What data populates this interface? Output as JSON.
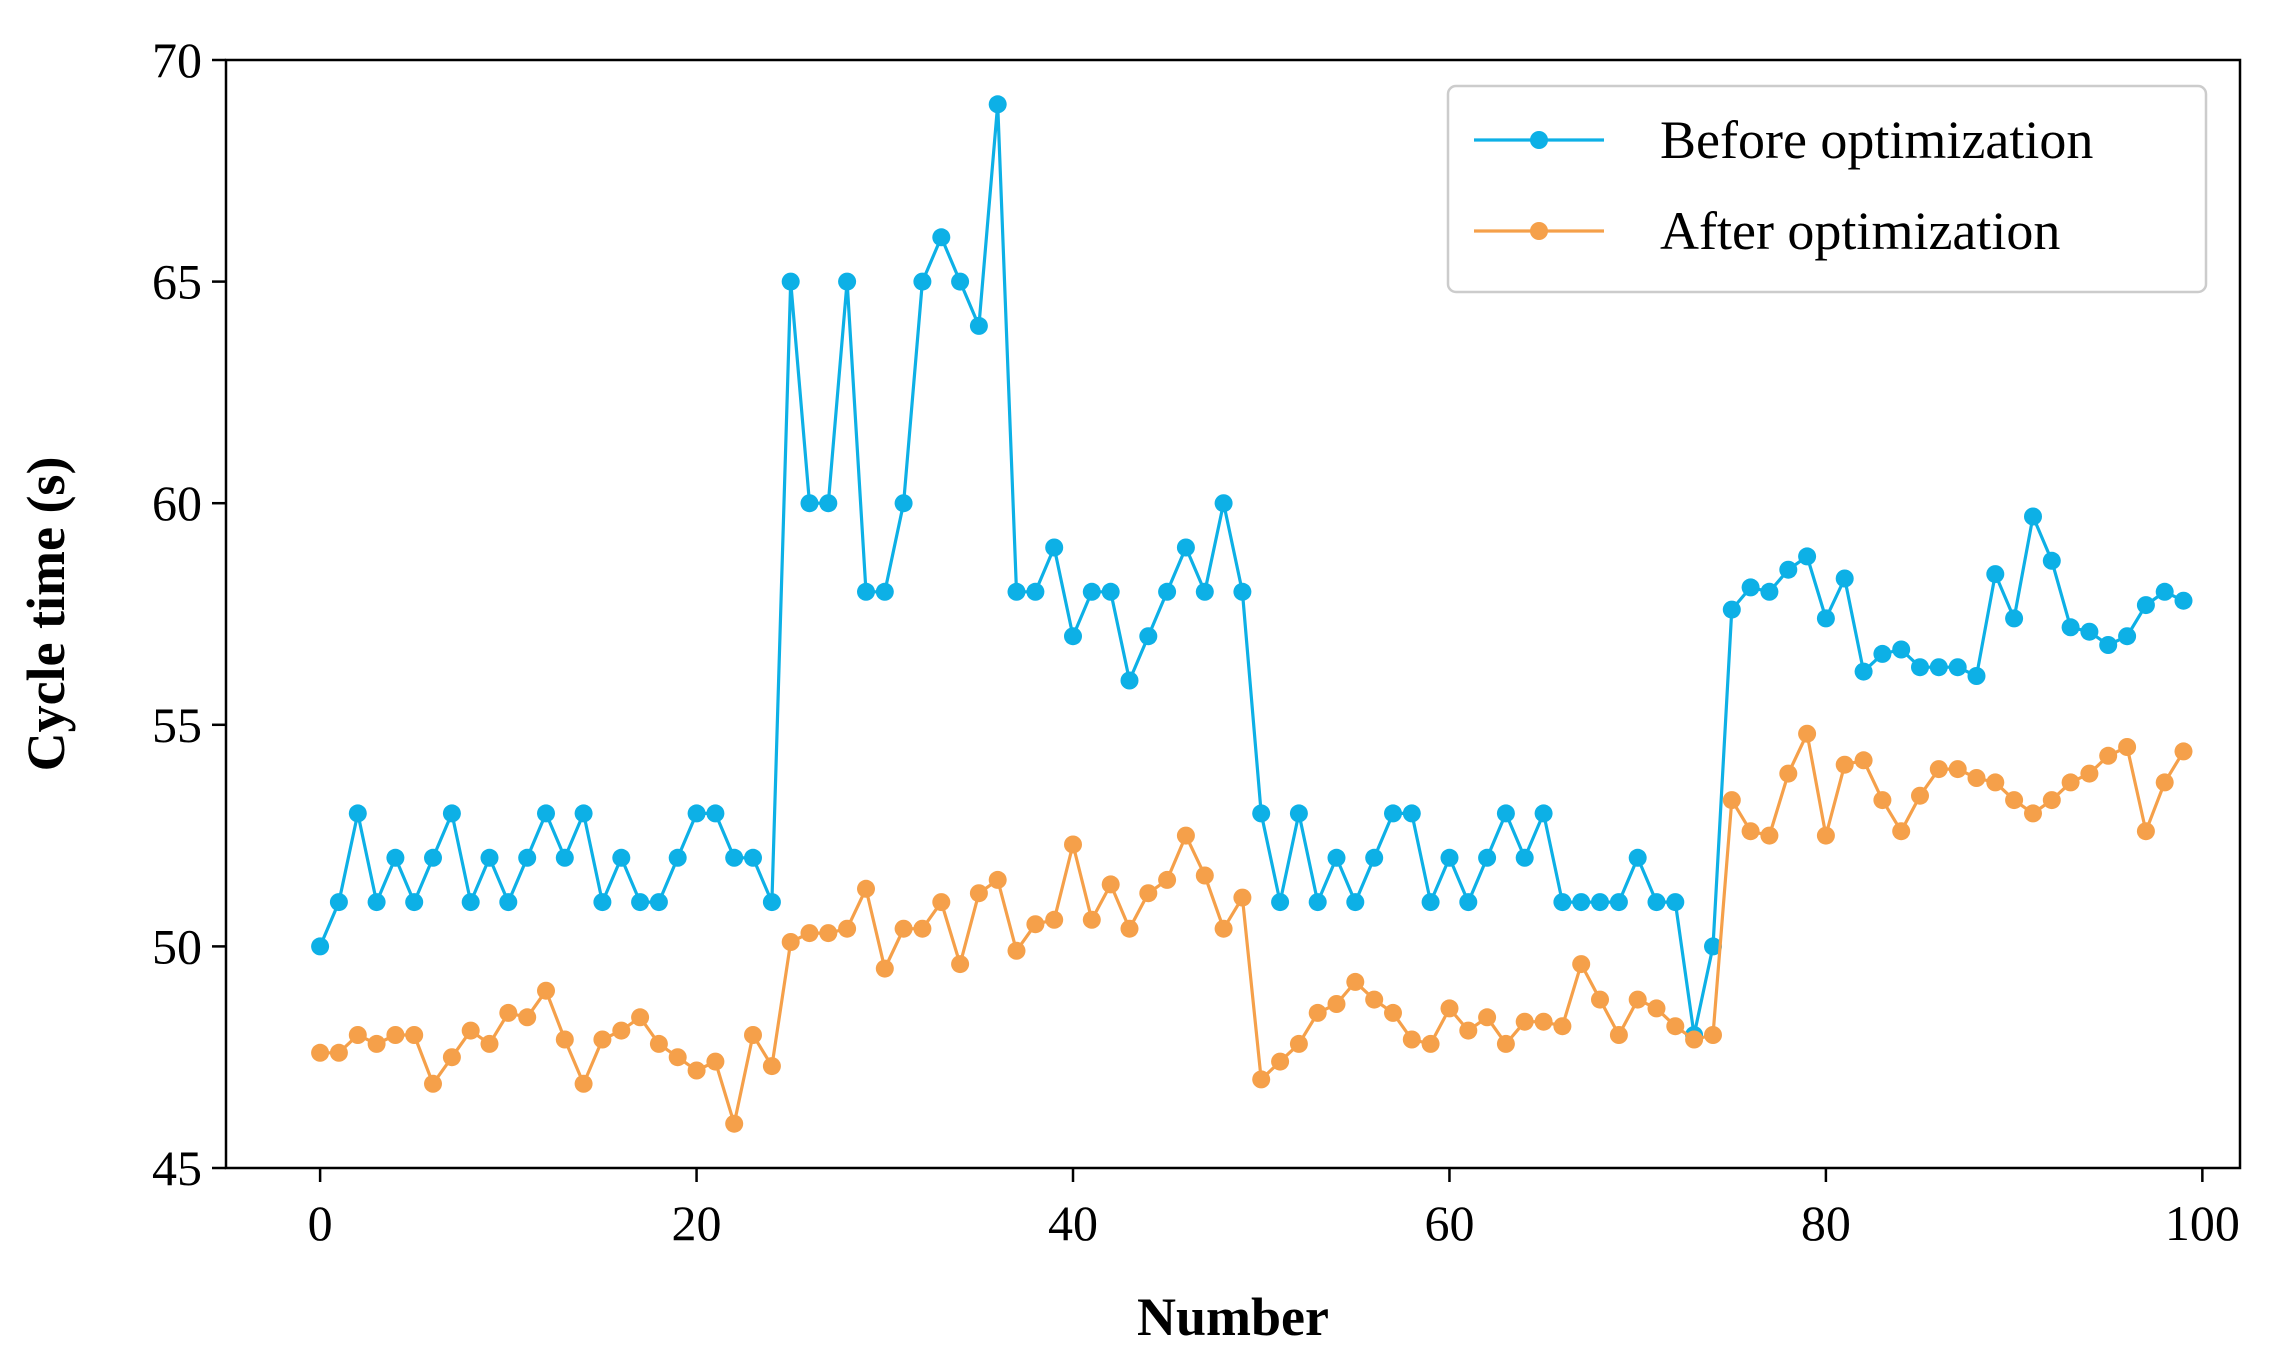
{
  "chart_data": {
    "type": "line",
    "title": "",
    "xlabel": "Number",
    "ylabel": "Cycle time (s)",
    "xlim": [
      -5,
      102
    ],
    "ylim": [
      45,
      70
    ],
    "xticks": [
      0,
      20,
      40,
      60,
      80,
      100
    ],
    "yticks": [
      45,
      50,
      55,
      60,
      65,
      70
    ],
    "grid": false,
    "legend_position": "top-right",
    "series": [
      {
        "name": "Before optimization",
        "color": "#0DB0E6",
        "marker": "circle",
        "x": [
          0,
          1,
          2,
          3,
          4,
          5,
          6,
          7,
          8,
          9,
          10,
          11,
          12,
          13,
          14,
          15,
          16,
          17,
          18,
          19,
          20,
          21,
          22,
          23,
          24,
          25,
          26,
          27,
          28,
          29,
          30,
          31,
          32,
          33,
          34,
          35,
          36,
          37,
          38,
          39,
          40,
          41,
          42,
          43,
          44,
          45,
          46,
          47,
          48,
          49,
          50,
          51,
          52,
          53,
          54,
          55,
          56,
          57,
          58,
          59,
          60,
          61,
          62,
          63,
          64,
          65,
          66,
          67,
          68,
          69,
          70,
          71,
          72,
          73,
          74,
          75,
          76,
          77,
          78,
          79,
          80,
          81,
          82,
          83,
          84,
          85,
          86,
          87,
          88,
          89,
          90,
          91,
          92,
          93,
          94,
          95,
          96,
          97,
          98,
          99
        ],
        "values": [
          50,
          51,
          53,
          51,
          52,
          51,
          52,
          53,
          51,
          52,
          51,
          52,
          53,
          52,
          53,
          51,
          52,
          51,
          51,
          52,
          53,
          53,
          52,
          52,
          51,
          65,
          60,
          60,
          65,
          58,
          58,
          60,
          65,
          66,
          65,
          64,
          69,
          58,
          58,
          59,
          57,
          58,
          58,
          56,
          57,
          58,
          59,
          58,
          60,
          58,
          53,
          51,
          53,
          51,
          52,
          51,
          52,
          53,
          53,
          51,
          52,
          51,
          52,
          53,
          52,
          53,
          51,
          51,
          51,
          51,
          52,
          51,
          51,
          48,
          50,
          57.6,
          58.1,
          58,
          58.5,
          58.8,
          57.4,
          58.3,
          56.2,
          56.6,
          56.7,
          56.3,
          56.3,
          56.3,
          56.1,
          58.4,
          57.4,
          59.7,
          58.7,
          57.2,
          57.1,
          56.8,
          57,
          57.7,
          58,
          57.8
        ]
      },
      {
        "name": "After optimization",
        "color": "#F5A04A",
        "marker": "circle",
        "x": [
          0,
          1,
          2,
          3,
          4,
          5,
          6,
          7,
          8,
          9,
          10,
          11,
          12,
          13,
          14,
          15,
          16,
          17,
          18,
          19,
          20,
          21,
          22,
          23,
          24,
          25,
          26,
          27,
          28,
          29,
          30,
          31,
          32,
          33,
          34,
          35,
          36,
          37,
          38,
          39,
          40,
          41,
          42,
          43,
          44,
          45,
          46,
          47,
          48,
          49,
          50,
          51,
          52,
          53,
          54,
          55,
          56,
          57,
          58,
          59,
          60,
          61,
          62,
          63,
          64,
          65,
          66,
          67,
          68,
          69,
          70,
          71,
          72,
          73,
          74,
          75,
          76,
          77,
          78,
          79,
          80,
          81,
          82,
          83,
          84,
          85,
          86,
          87,
          88,
          89,
          90,
          91,
          92,
          93,
          94,
          95,
          96,
          97,
          98,
          99
        ],
        "values": [
          47.6,
          47.6,
          48,
          47.8,
          48,
          48,
          46.9,
          47.5,
          48.1,
          47.8,
          48.5,
          48.4,
          49,
          47.9,
          46.9,
          47.9,
          48.1,
          48.4,
          47.8,
          47.5,
          47.2,
          47.4,
          46,
          48,
          47.3,
          50.1,
          50.3,
          50.3,
          50.4,
          51.3,
          49.5,
          50.4,
          50.4,
          51,
          49.6,
          51.2,
          51.5,
          49.9,
          50.5,
          50.6,
          52.3,
          50.6,
          51.4,
          50.4,
          51.2,
          51.5,
          52.5,
          51.6,
          50.4,
          51.1,
          47,
          47.4,
          47.8,
          48.5,
          48.7,
          49.2,
          48.8,
          48.5,
          47.9,
          47.8,
          48.6,
          48.1,
          48.4,
          47.8,
          48.3,
          48.3,
          48.2,
          49.6,
          48.8,
          48,
          48.8,
          48.6,
          48.2,
          47.9,
          48,
          53.3,
          52.6,
          52.5,
          53.9,
          54.8,
          52.5,
          54.1,
          54.2,
          53.3,
          52.6,
          53.4,
          54,
          54,
          53.8,
          53.7,
          53.3,
          53,
          53.3,
          53.7,
          53.9,
          54.3,
          54.5,
          52.6,
          53.7,
          54.4
        ]
      }
    ]
  }
}
